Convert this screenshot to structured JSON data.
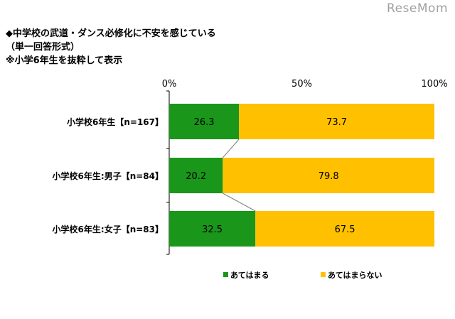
{
  "watermark": "ReseMom",
  "title_lines": [
    "◆中学校の武道・ダンス必修化に不安を感じている",
    "（単一回答形式）",
    "※小学6年生を抜粋して表示"
  ],
  "chart_data": {
    "type": "bar",
    "orientation": "horizontal",
    "stacked": true,
    "title": "中学校の武道・ダンス必修化に不安を感じている",
    "categories": [
      "小学校6年生【n=167】",
      "小学校6年生:男子【n=84】",
      "小学校6年生:女子【n=83】"
    ],
    "series": [
      {
        "name": "あてはまる",
        "color": "#1a961a",
        "values": [
          26.3,
          20.2,
          32.5
        ]
      },
      {
        "name": "あてはまらない",
        "color": "#ffc000",
        "values": [
          73.7,
          79.8,
          67.5
        ]
      }
    ],
    "x_ticks": [
      "0%",
      "50%",
      "100%"
    ],
    "xlim": [
      0,
      100
    ],
    "grid": false,
    "legend_position": "bottom"
  }
}
